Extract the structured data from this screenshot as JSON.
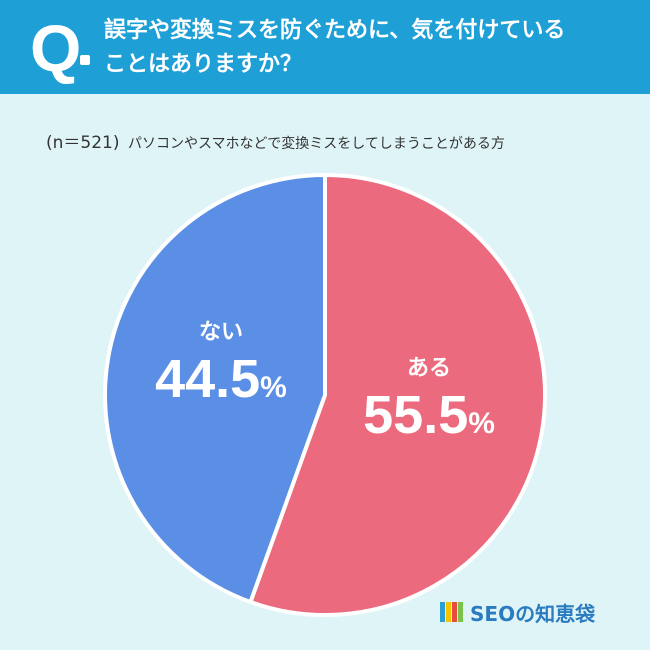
{
  "header": {
    "q_mark": "Q",
    "question_line1": "誤字や変換ミスを防ぐために、気を付けている",
    "question_line2": "ことはありますか？"
  },
  "sample": {
    "n": "(n＝521)",
    "subtitle": "パソコンやスマホなどで変換ミスをしてしまうことがある方"
  },
  "chart_data": {
    "type": "pie",
    "slices": [
      {
        "label": "ある",
        "value": 55.5,
        "display": "55.5",
        "color": "#ec6a7d"
      },
      {
        "label": "ない",
        "value": 44.5,
        "display": "44.5",
        "color": "#5b8fe6"
      }
    ],
    "unit": "%"
  },
  "brand": {
    "name": "SEOの知恵袋",
    "logo_colors": [
      "#2a9fd6",
      "#f5c400",
      "#e84c3d",
      "#7cc24a"
    ]
  }
}
